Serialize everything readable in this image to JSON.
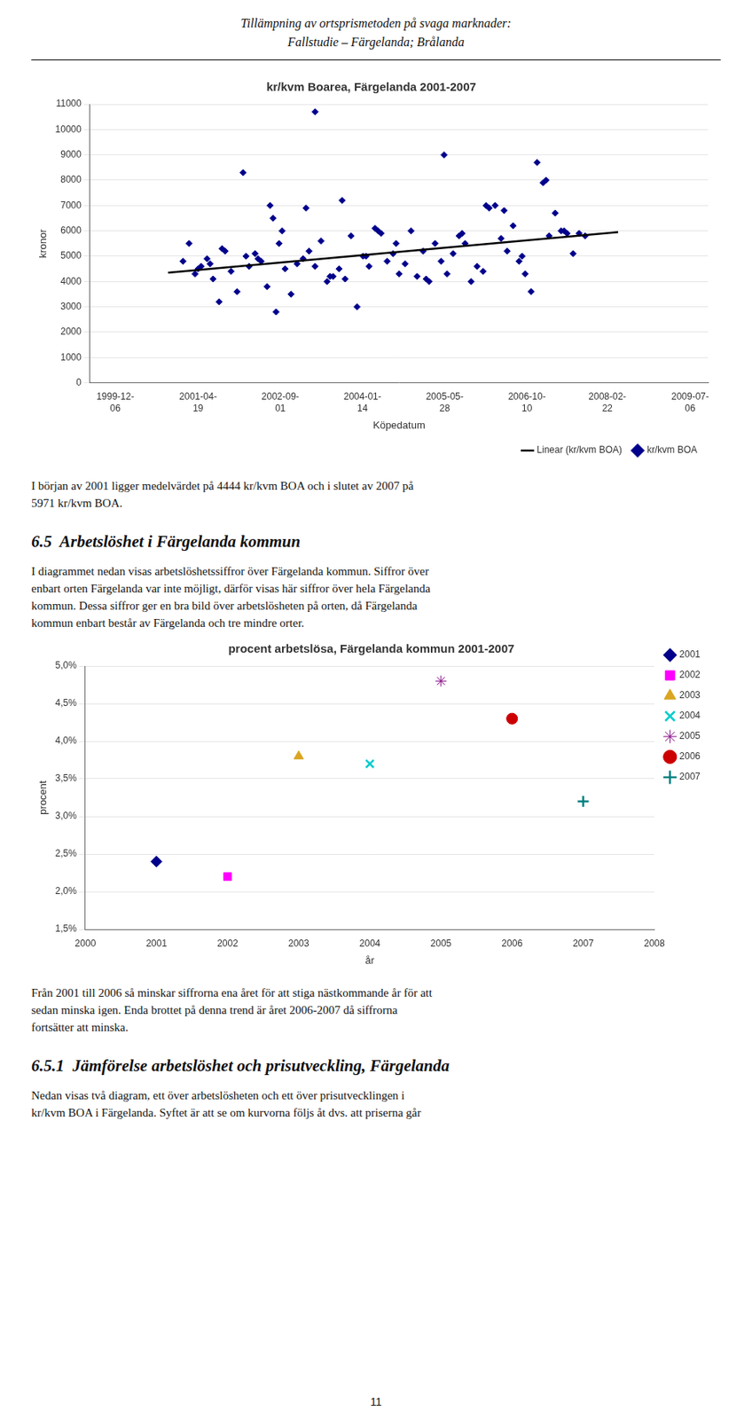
{
  "title": [
    "Tillämpning av ortsprismetoden på svaga marknader:",
    "Fallstudie – Färgelanda; Brålanda"
  ],
  "chart_data": [
    {
      "type": "scatter",
      "title": "kr/kvm Boarea, Färgelanda 2001-2007",
      "xlabel": "Köpedatum",
      "ylabel": "kronor",
      "xlim": [
        1999.5,
        2009.8
      ],
      "xticks": [
        {
          "value": 1999.92,
          "label": "1999-12-\n06"
        },
        {
          "value": 2001.3,
          "label": "2001-04-\n19"
        },
        {
          "value": 2002.67,
          "label": "2002-09-\n01"
        },
        {
          "value": 2004.04,
          "label": "2004-01-\n14"
        },
        {
          "value": 2005.41,
          "label": "2005-05-\n28"
        },
        {
          "value": 2006.78,
          "label": "2006-10-\n10"
        },
        {
          "value": 2008.12,
          "label": "2008-02-\n22"
        },
        {
          "value": 2009.5,
          "label": "2009-07-\n06"
        }
      ],
      "ylim": [
        0,
        11000
      ],
      "yticks": [
        0,
        1000,
        2000,
        3000,
        4000,
        5000,
        6000,
        7000,
        8000,
        9000,
        10000,
        11000
      ],
      "grid": true,
      "legend": "lower right",
      "series": [
        {
          "name": "kr/kvm BOA",
          "type": "scatter",
          "color": "#00008B",
          "marker": "diamond",
          "x": [
            2001.05,
            2001.15,
            2001.25,
            2001.35,
            2001.45,
            2001.55,
            2001.65,
            2001.75,
            2001.85,
            2001.95,
            2002.05,
            2002.15,
            2002.25,
            2002.35,
            2002.45,
            2002.55,
            2002.65,
            2002.75,
            2002.85,
            2002.95,
            2003.05,
            2003.15,
            2003.25,
            2003.35,
            2003.45,
            2003.55,
            2003.65,
            2003.75,
            2003.85,
            2003.95,
            2004.05,
            2004.15,
            2004.25,
            2004.35,
            2004.45,
            2004.55,
            2004.65,
            2004.75,
            2004.85,
            2004.95,
            2005.05,
            2005.15,
            2005.25,
            2005.35,
            2005.45,
            2005.55,
            2005.65,
            2005.75,
            2005.85,
            2005.95,
            2006.05,
            2006.15,
            2006.25,
            2006.35,
            2006.45,
            2006.55,
            2006.65,
            2006.75,
            2006.85,
            2006.95,
            2007.05,
            2007.15,
            2007.25,
            2007.35,
            2007.45,
            2007.55,
            2007.65,
            2007.75,
            2001.3,
            2001.5,
            2001.7,
            2002.1,
            2002.3,
            2002.5,
            2002.7,
            2003.1,
            2003.5,
            2003.7,
            2004.1,
            2004.3,
            2004.6,
            2005.1,
            2005.4,
            2005.7,
            2006.1,
            2006.4,
            2006.7,
            2007.1,
            2007.4,
            2003.25,
            2002.6
          ],
          "values": [
            4800,
            5500,
            4300,
            4600,
            4900,
            4100,
            3200,
            5200,
            4400,
            3600,
            8300,
            4600,
            5100,
            4800,
            3800,
            6500,
            5500,
            4500,
            3500,
            4700,
            4900,
            5200,
            4600,
            5600,
            4000,
            4200,
            4500,
            4100,
            5800,
            3000,
            5000,
            4600,
            6100,
            5900,
            4800,
            5100,
            4300,
            4700,
            6000,
            4200,
            5200,
            4000,
            5500,
            4800,
            4300,
            5100,
            5800,
            5500,
            4000,
            4600,
            4400,
            6900,
            7000,
            5700,
            5200,
            6200,
            4800,
            4300,
            3600,
            8700,
            7900,
            5800,
            6700,
            6000,
            5900,
            5100,
            5900,
            5800,
            4500,
            4700,
            5300,
            5000,
            4900,
            7000,
            6000,
            6900,
            4200,
            7200,
            5000,
            6000,
            5500,
            4100,
            9000,
            5900,
            7000,
            6800,
            5000,
            8000,
            6000,
            10700,
            2800
          ]
        },
        {
          "name": "Linear (kr/kvm BOA)",
          "type": "line",
          "color": "#000000",
          "line_style": "solid",
          "x": [
            2000.8,
            2008.3
          ],
          "values": [
            4350,
            5950
          ]
        }
      ],
      "text_after": [
        {
          "text": [
            "I början av 2001 ligger medelvärdet på 4444 kr/kvm BOA och i slutet av 2007 på",
            "5971 kr/kvm BOA."
          ]
        },
        {
          "heading": "6.5  Arbetslöshet i Färgelanda kommun"
        },
        {
          "text": [
            "I diagrammet nedan visas arbetslöshetssiffror över Färgelanda kommun. Siffror över",
            "enbart orten Färgelanda var inte möjligt, därför visas här siffror över hela Färgelanda",
            "kommun. Dessa siffror ger en bra bild över arbetslösheten på orten, då Färgelanda",
            "kommun enbart består av Färgelanda och tre mindre orter."
          ]
        }
      ]
    },
    {
      "type": "scatter",
      "title": "procent arbetslösa, Färgelanda kommun 2001-2007",
      "xlabel": "år",
      "ylabel": "procent",
      "xlim": [
        2000,
        2008
      ],
      "xticks": [
        2000,
        2001,
        2002,
        2003,
        2004,
        2005,
        2006,
        2007,
        2008
      ],
      "ylim": [
        0.015,
        0.05
      ],
      "yticks": [
        {
          "value": 0.015,
          "label": "1,5%"
        },
        {
          "value": 0.02,
          "label": "2,0%"
        },
        {
          "value": 0.025,
          "label": "2,5%"
        },
        {
          "value": 0.03,
          "label": "3,0%"
        },
        {
          "value": 0.035,
          "label": "3,5%"
        },
        {
          "value": 0.04,
          "label": "4,0%"
        },
        {
          "value": 0.045,
          "label": "4,5%"
        },
        {
          "value": 0.05,
          "label": "5,0%"
        }
      ],
      "grid": true,
      "legend": "right",
      "series": [
        {
          "name": "2001",
          "color": "#00008B",
          "marker": "diamond",
          "x": [
            2001
          ],
          "values": [
            0.024
          ]
        },
        {
          "name": "2002",
          "color": "#FF00FF",
          "marker": "square",
          "x": [
            2002
          ],
          "values": [
            0.022
          ]
        },
        {
          "name": "2003",
          "color": "#DAA520",
          "marker": "triangle",
          "x": [
            2003
          ],
          "values": [
            0.038
          ]
        },
        {
          "name": "2004",
          "color": "#00CCCC",
          "marker": "x",
          "x": [
            2004
          ],
          "values": [
            0.037
          ]
        },
        {
          "name": "2005",
          "color": "#800080",
          "marker": "star",
          "x": [
            2005
          ],
          "values": [
            0.048
          ]
        },
        {
          "name": "2006",
          "color": "#CC0000",
          "marker": "circle",
          "x": [
            2006
          ],
          "values": [
            0.043
          ]
        },
        {
          "name": "2007",
          "color": "#008080",
          "marker": "plus",
          "x": [
            2007
          ],
          "values": [
            0.032
          ]
        }
      ],
      "text_after": [
        {
          "text": [
            "Från 2001 till 2006 så minskar siffrorna ena året för att stiga nästkommande år för att",
            "sedan minska igen. Enda brottet på denna trend är året 2006-2007 då siffrorna",
            "fortsätter att minska."
          ]
        },
        {
          "heading": "6.5.1  Jämförelse arbetslöshet och prisutveckling, Färgelanda"
        },
        {
          "text": [
            "Nedan visas två diagram, ett över arbetslösheten och ett över prisutvecklingen i",
            "kr/kvm BOA i Färgelanda. Syftet är att se om kurvorna följs åt dvs. att priserna går"
          ]
        }
      ]
    }
  ],
  "page_number": "11"
}
